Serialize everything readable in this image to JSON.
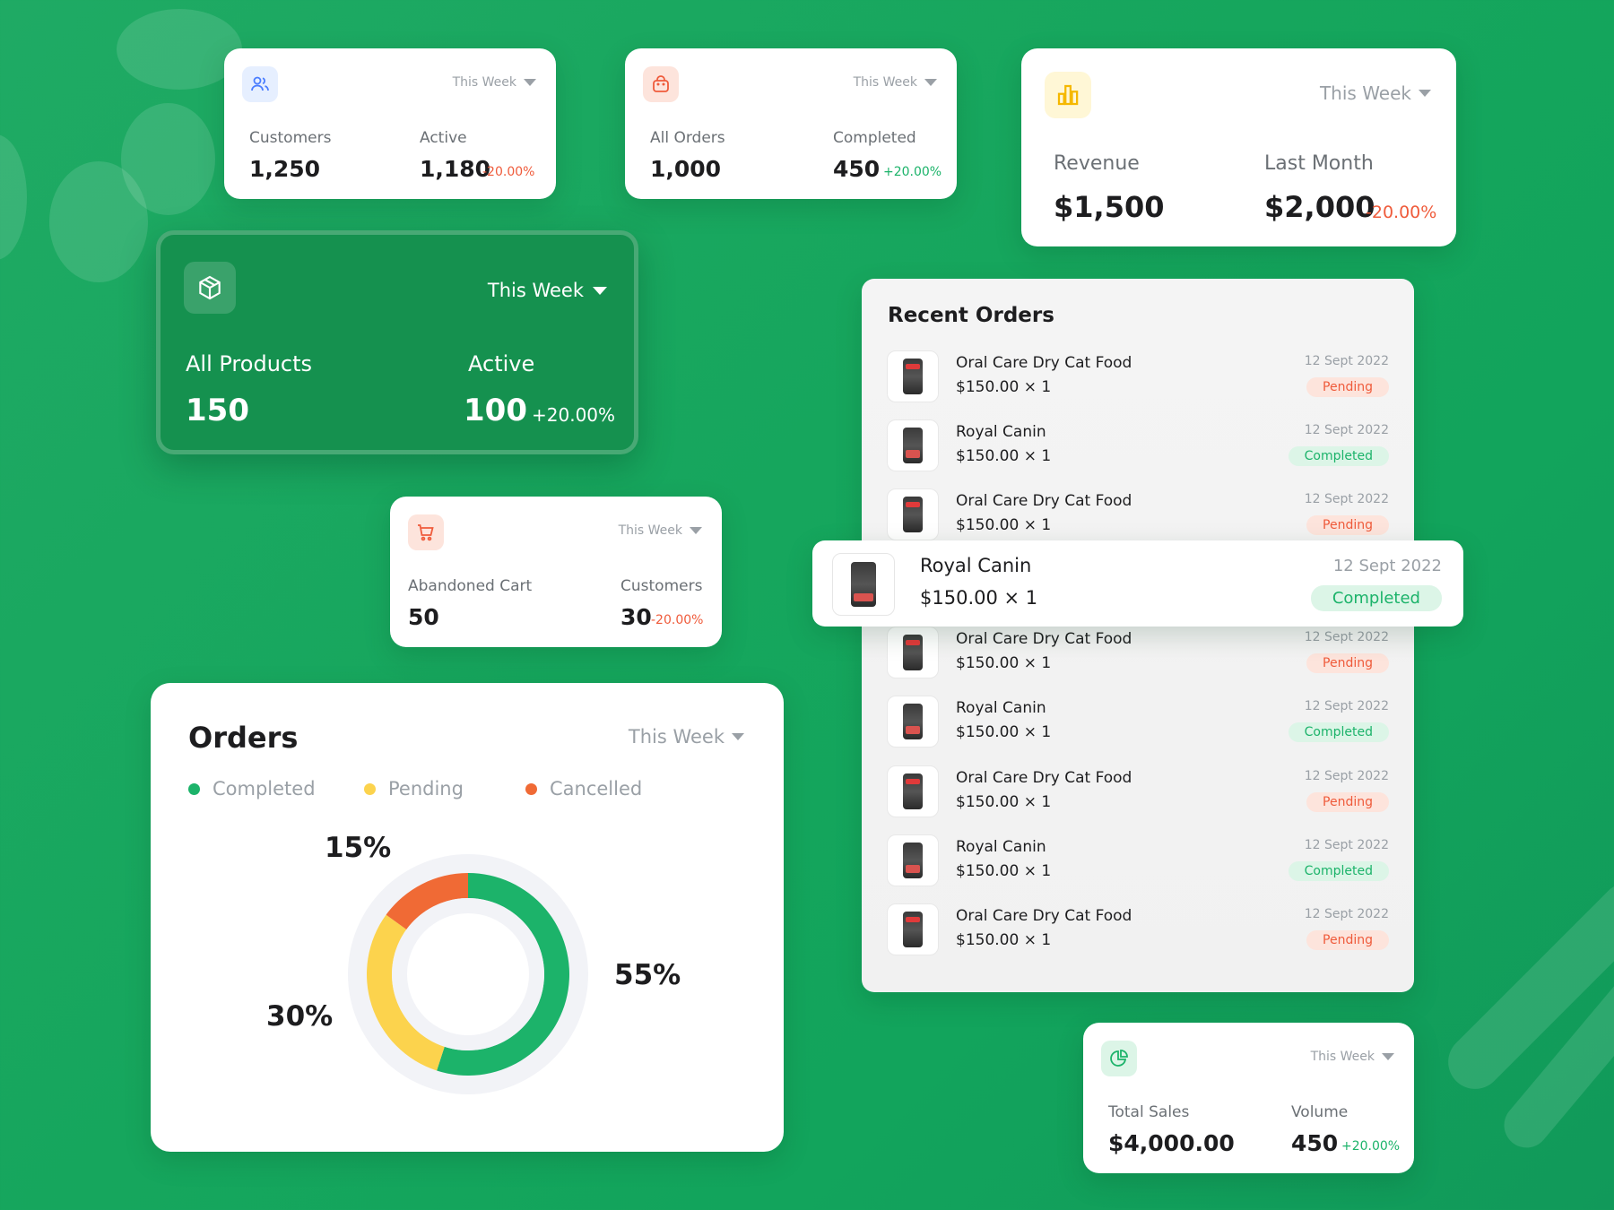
{
  "colors": {
    "accent": "#1cb36a",
    "negative": "#ef5b3b",
    "pending": "#fcd34d",
    "background": "#16a65d"
  },
  "card_customers": {
    "period": "This Week",
    "label1": "Customers",
    "value1": "1,250",
    "label2": "Active",
    "value2": "1,180",
    "change": "-20.00%"
  },
  "card_orders": {
    "period": "This Week",
    "label1": "All Orders",
    "value1": "1,000",
    "label2": "Completed",
    "value2": "450",
    "change": "+20.00%"
  },
  "card_revenue": {
    "period": "This Week",
    "label1": "Revenue",
    "value1": "$1,500",
    "label2": "Last Month",
    "value2": "$2,000",
    "change": "-20.00%"
  },
  "card_products": {
    "period": "This Week",
    "label1": "All Products",
    "value1": "150",
    "label2": "Active",
    "value2": "100",
    "change": "+20.00%"
  },
  "card_cart": {
    "period": "This Week",
    "label1": "Abandoned Cart",
    "value1": "50",
    "label2": "Customers",
    "value2": "30",
    "change": "-20.00%"
  },
  "card_sales": {
    "period": "This Week",
    "label1": "Total Sales",
    "value1": "$4,000.00",
    "label2": "Volume",
    "value2": "450",
    "change": "+20.00%"
  },
  "orders_chart": {
    "title": "Orders",
    "period": "This Week",
    "legend": [
      "Completed",
      "Pending",
      "Cancelled"
    ],
    "labels": {
      "completed": "55%",
      "pending": "30%",
      "cancelled": "15%"
    }
  },
  "chart_data": {
    "type": "pie",
    "title": "Orders",
    "categories": [
      "Completed",
      "Pending",
      "Cancelled"
    ],
    "values": [
      55,
      30,
      15
    ],
    "colors": [
      "#1cb36a",
      "#fcd34d",
      "#f06a35"
    ],
    "legend_position": "top"
  },
  "recent_orders": {
    "title": "Recent Orders",
    "items": [
      {
        "name": "Oral Care Dry Cat Food",
        "price": "$150.00 × 1",
        "date": "12 Sept 2022",
        "status": "Pending"
      },
      {
        "name": "Royal Canin",
        "price": "$150.00 × 1",
        "date": "12 Sept 2022",
        "status": "Completed"
      },
      {
        "name": "Oral Care Dry Cat Food",
        "price": "$150.00 × 1",
        "date": "12 Sept 2022",
        "status": "Pending"
      },
      {
        "name": "Oral Care Dry Cat Food",
        "price": "$150.00 × 1",
        "date": "12 Sept 2022",
        "status": "Pending"
      },
      {
        "name": "Royal Canin",
        "price": "$150.00 × 1",
        "date": "12 Sept 2022",
        "status": "Completed"
      },
      {
        "name": "Oral Care Dry Cat Food",
        "price": "$150.00 × 1",
        "date": "12 Sept 2022",
        "status": "Pending"
      },
      {
        "name": "Royal Canin",
        "price": "$150.00 × 1",
        "date": "12 Sept 2022",
        "status": "Completed"
      },
      {
        "name": "Oral Care Dry Cat Food",
        "price": "$150.00 × 1",
        "date": "12 Sept 2022",
        "status": "Pending"
      }
    ],
    "highlight": {
      "name": "Royal Canin",
      "price": "$150.00 × 1",
      "date": "12 Sept 2022",
      "status": "Completed"
    }
  }
}
